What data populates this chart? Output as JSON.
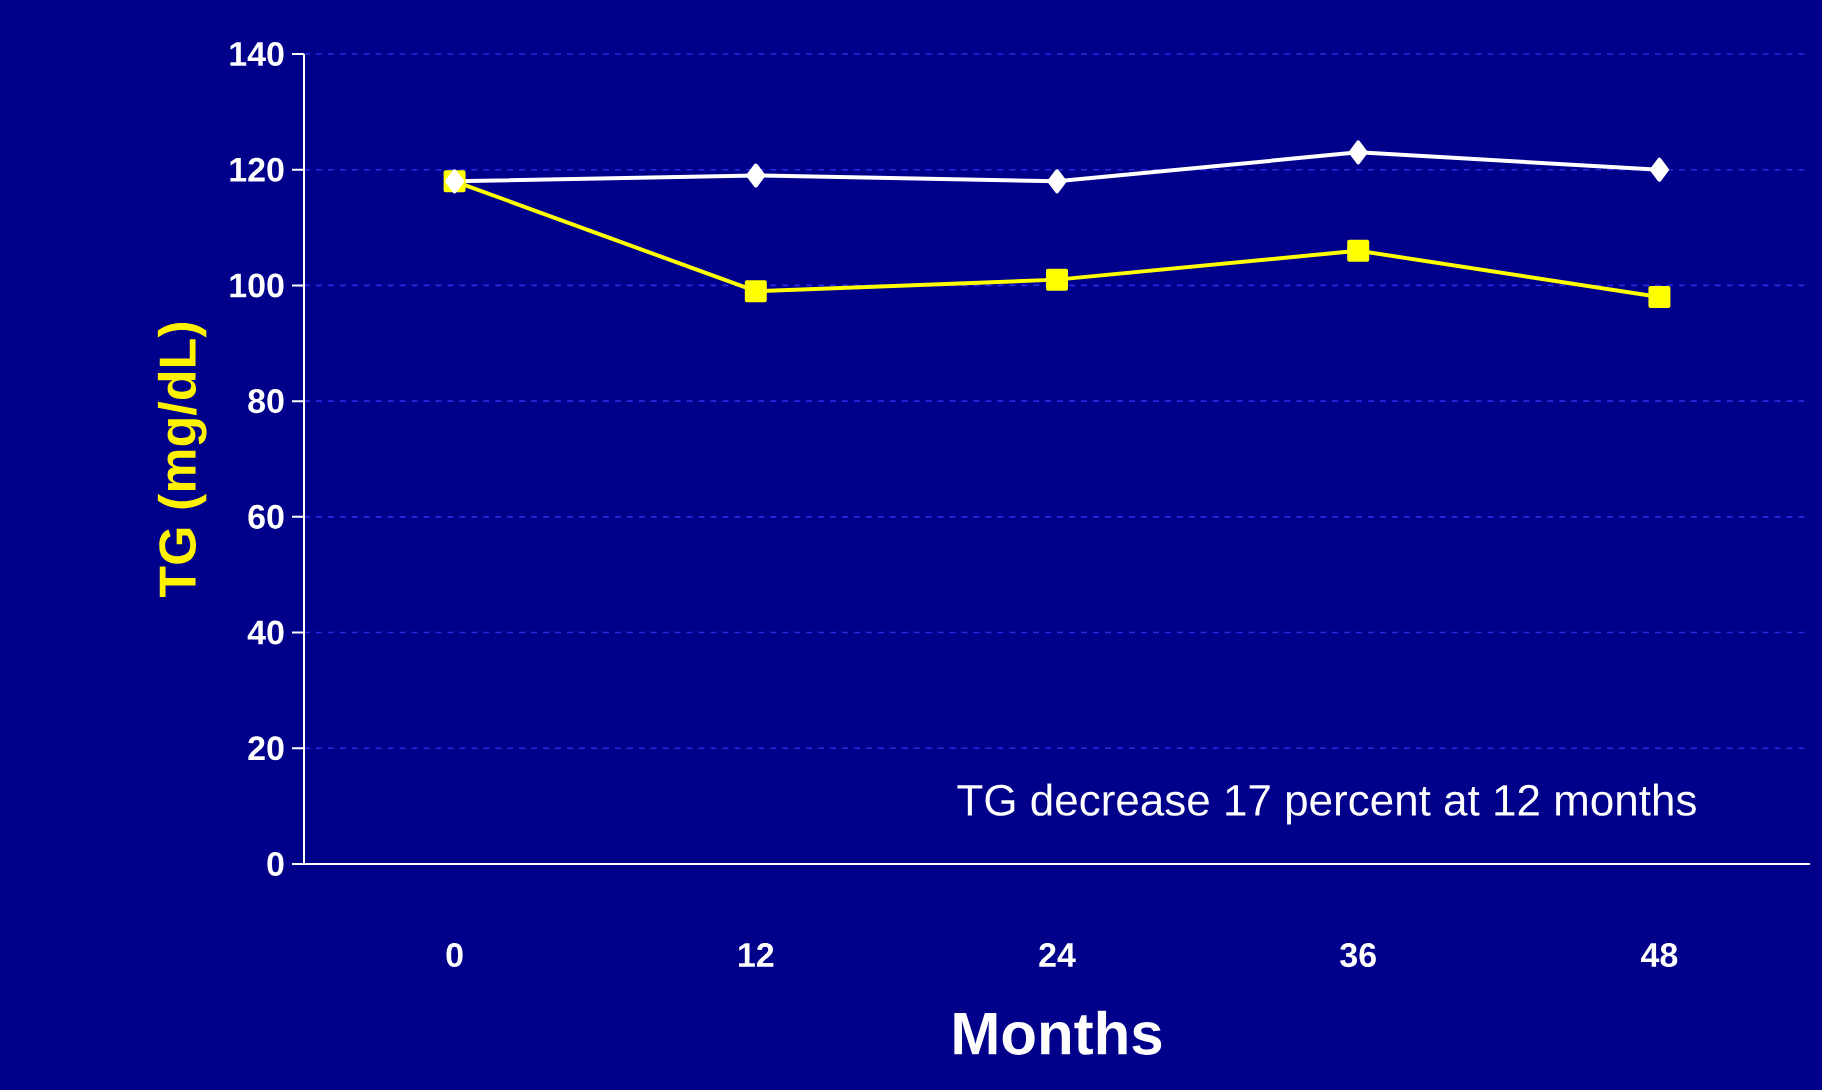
{
  "chart_data": {
    "type": "line",
    "xlabel": "Months",
    "ylabel": "TG  (mg/dL)",
    "categories": [
      "0",
      "12",
      "24",
      "36",
      "48"
    ],
    "series": [
      {
        "color": "#ffffff",
        "marker": "diamond",
        "values": [
          118,
          119,
          118,
          123,
          120
        ]
      },
      {
        "color": "#ffff00",
        "marker": "square",
        "values": [
          118,
          99,
          101,
          106,
          98
        ]
      }
    ],
    "ylim": [
      0,
      140
    ],
    "yticks": [
      0,
      20,
      40,
      60,
      80,
      100,
      120,
      140
    ],
    "grid": "y",
    "line_style": "solid",
    "annotations": [
      "TG decrease 17 percent at 12 months"
    ]
  }
}
